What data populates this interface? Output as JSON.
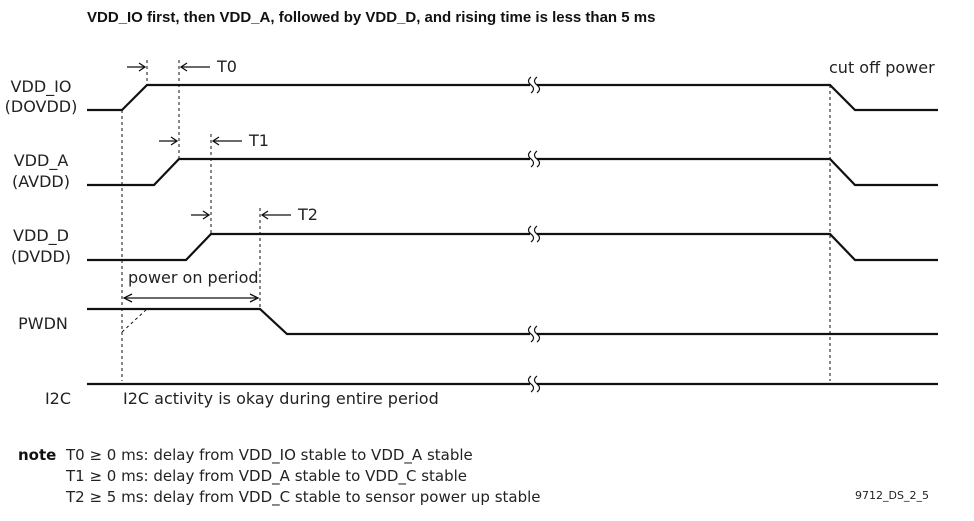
{
  "title": "VDD_IO first, then VDD_A, followed by VDD_D, and rising time is less than 5 ms",
  "signals": {
    "vdd_io": [
      "VDD_IO",
      "(DOVDD)"
    ],
    "vdd_a": [
      "VDD_A",
      "(AVDD)"
    ],
    "vdd_d": [
      "VDD_D",
      "(DVDD)"
    ],
    "pwdn": "PWDN",
    "i2c": "I2C"
  },
  "timing_labels": {
    "t0": "T0",
    "t1": "T1",
    "t2": "T2",
    "power_on_period": "power on period",
    "cut_off_power": "cut off power",
    "i2c_activity": "I2C activity is okay during entire period"
  },
  "notes": {
    "heading": "note",
    "lines": [
      "T0 ≥ 0 ms: delay from VDD_IO stable to VDD_A stable",
      "T1 ≥ 0 ms: delay from VDD_A stable to VDD_C stable",
      "T2 ≥ 5 ms: delay from VDD_C stable to sensor power up stable"
    ]
  },
  "figure_id": "9712_DS_2_5"
}
